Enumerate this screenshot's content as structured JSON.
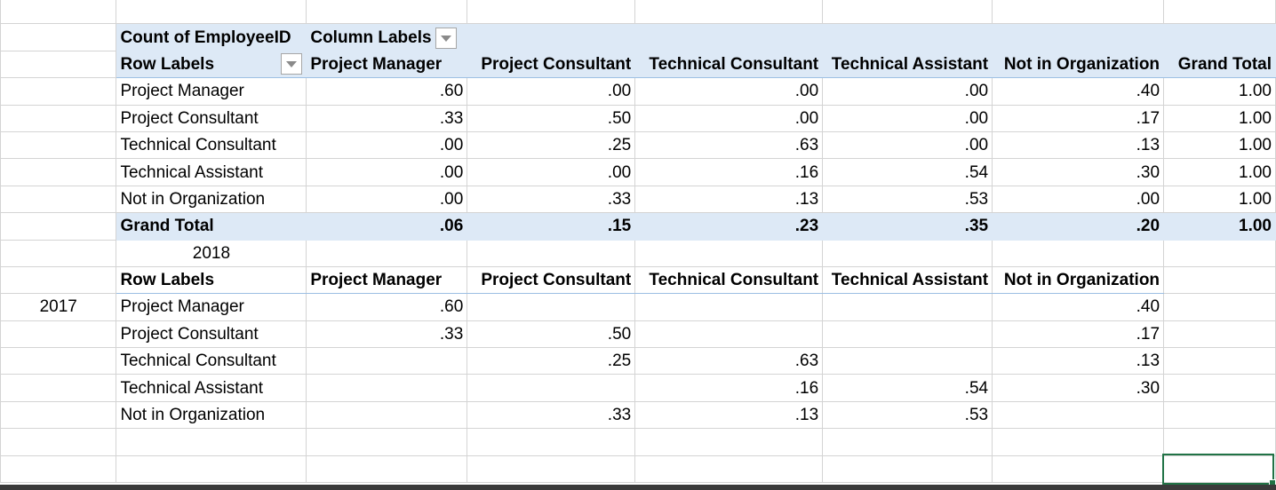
{
  "pivot": {
    "corner_label": "Count of EmployeeID",
    "column_labels": "Column Labels",
    "row_labels": "Row Labels",
    "columns": [
      "Project Manager",
      "Project Consultant",
      "Technical Consultant",
      "Technical Assistant",
      "Not in Organization",
      "Grand Total"
    ],
    "rows": [
      {
        "label": "Project Manager",
        "values": [
          ".60",
          ".00",
          ".00",
          ".00",
          ".40",
          "1.00"
        ]
      },
      {
        "label": "Project Consultant",
        "values": [
          ".33",
          ".50",
          ".00",
          ".00",
          ".17",
          "1.00"
        ]
      },
      {
        "label": "Technical Consultant",
        "values": [
          ".00",
          ".25",
          ".63",
          ".00",
          ".13",
          "1.00"
        ]
      },
      {
        "label": "Technical Assistant",
        "values": [
          ".00",
          ".00",
          ".16",
          ".54",
          ".30",
          "1.00"
        ]
      },
      {
        "label": "Not in Organization",
        "values": [
          ".00",
          ".33",
          ".13",
          ".53",
          ".00",
          "1.00"
        ]
      }
    ],
    "grand_total": {
      "label": "Grand Total",
      "values": [
        ".06",
        ".15",
        ".23",
        ".35",
        ".20",
        "1.00"
      ]
    }
  },
  "transition": {
    "year_to": "2018",
    "year_from": "2017",
    "row_labels": "Row Labels",
    "columns": [
      "Project Manager",
      "Project Consultant",
      "Technical Consultant",
      "Technical Assistant",
      "Not in Organization"
    ],
    "rows": [
      {
        "label": "Project Manager",
        "values": [
          ".60",
          "",
          "",
          "",
          ".40"
        ]
      },
      {
        "label": "Project Consultant",
        "values": [
          ".33",
          ".50",
          "",
          "",
          ".17"
        ]
      },
      {
        "label": "Technical Consultant",
        "values": [
          "",
          ".25",
          ".63",
          "",
          ".13"
        ]
      },
      {
        "label": "Technical Assistant",
        "values": [
          "",
          "",
          ".16",
          ".54",
          ".30"
        ]
      },
      {
        "label": "Not in Organization",
        "values": [
          "",
          ".33",
          ".13",
          ".53",
          ""
        ]
      }
    ]
  },
  "colors": {
    "pivot_header_fill": "#dde9f6",
    "pivot_border": "#9cbfe3",
    "gridline": "#d4d4d4",
    "selection": "#217346"
  },
  "icons": {
    "filter_dropdown": "filter-dropdown-icon"
  }
}
